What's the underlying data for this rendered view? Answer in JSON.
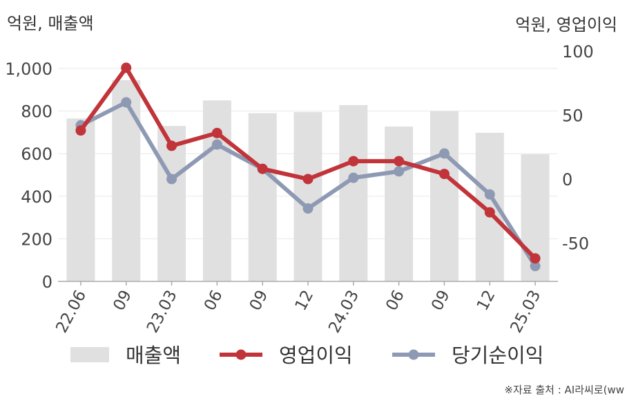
{
  "chart_data": {
    "type": "bar+line",
    "left_axis_unit": "억원, 매출액",
    "right_axis_unit": "억원, 영업이익",
    "categories": [
      "22.06",
      "09",
      "23.03",
      "06",
      "09",
      "12",
      "24.03",
      "06",
      "09",
      "12",
      "25.03"
    ],
    "series": [
      {
        "name": "매출액",
        "type": "bar",
        "axis": "left",
        "color": "#e0e0e0",
        "values": [
          765,
          945,
          730,
          850,
          790,
          795,
          828,
          727,
          800,
          698,
          597
        ]
      },
      {
        "name": "영업이익",
        "type": "line",
        "axis": "right",
        "color": "#c0343a",
        "values": [
          38,
          87,
          26,
          36,
          8,
          0,
          14,
          14,
          4,
          -26,
          -62
        ]
      },
      {
        "name": "당기순이익",
        "type": "line",
        "axis": "right",
        "color": "#8e9ab4",
        "values": [
          42,
          60,
          0,
          27,
          8,
          -23,
          1,
          6,
          20,
          -12,
          -68
        ]
      }
    ],
    "y_left": {
      "min": 0,
      "max": 1000,
      "ticks": [
        0,
        200,
        400,
        600,
        800,
        1000
      ],
      "tick_labels": [
        "0",
        "200",
        "400",
        "600",
        "800",
        "1,000"
      ]
    },
    "y_right": {
      "min": -80,
      "max": 100,
      "ticks": [
        -50,
        0,
        50,
        100
      ],
      "tick_labels": [
        "-50",
        "0",
        "50",
        "100"
      ]
    },
    "grid": true,
    "legend_position": "bottom"
  },
  "source_note": "※자료 출처 : AI라씨로(ww"
}
